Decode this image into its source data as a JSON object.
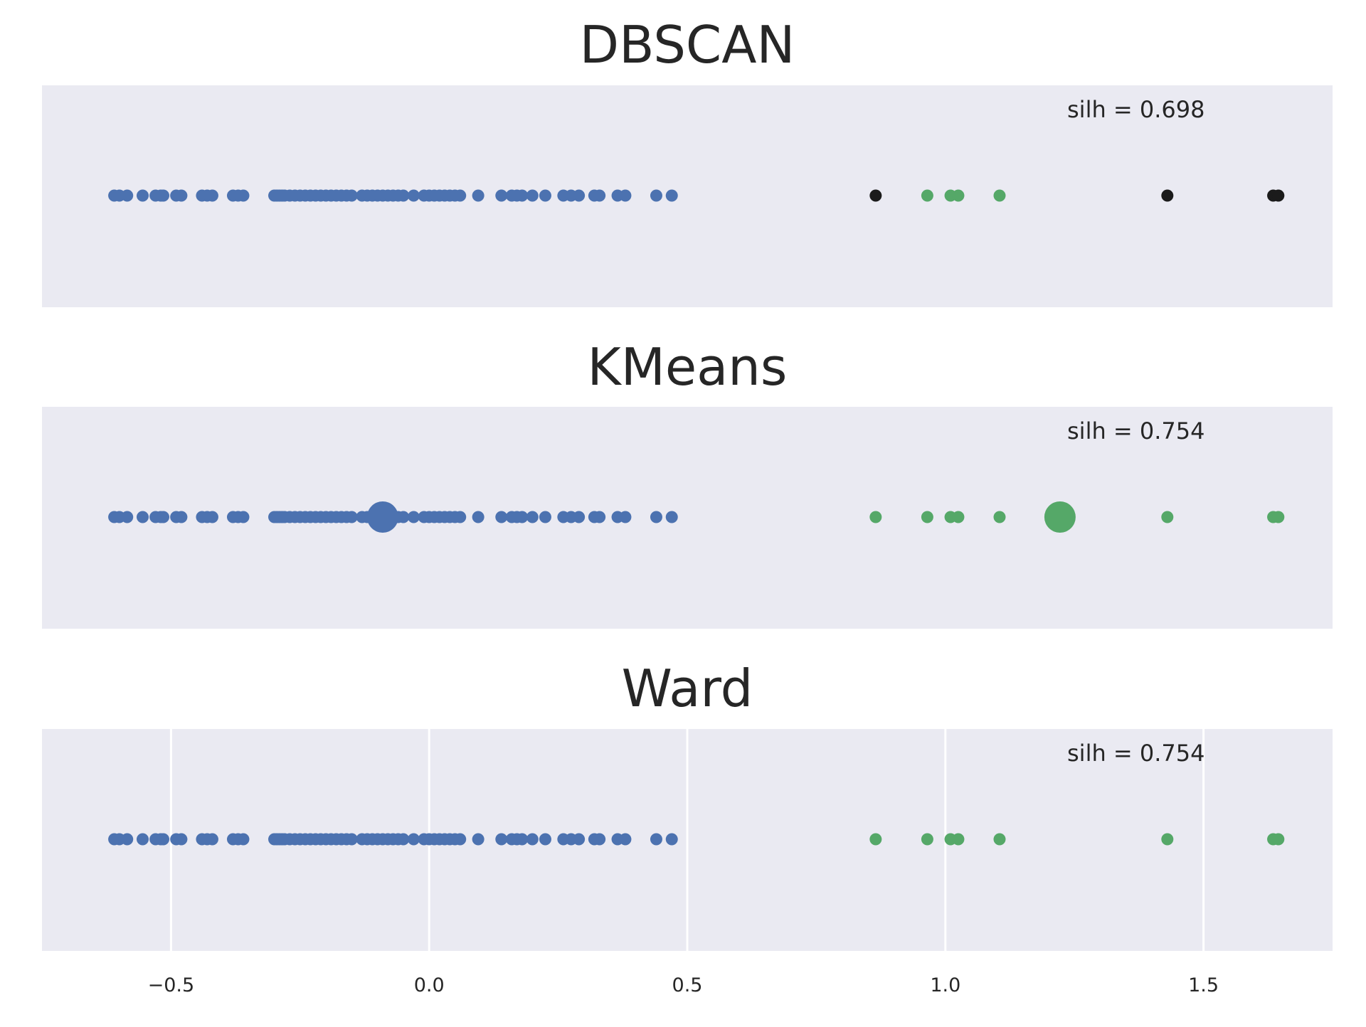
{
  "chart_data": [
    {
      "type": "scatter",
      "title": "DBSCAN",
      "annotation": "silh = 0.698",
      "xlim": [
        -0.75,
        1.75
      ],
      "grid": false,
      "series": [
        {
          "color": "#4c72b0",
          "x": [
            -0.61,
            -0.6,
            -0.585,
            -0.555,
            -0.53,
            -0.52,
            -0.515,
            -0.49,
            -0.48,
            -0.44,
            -0.43,
            -0.42,
            -0.38,
            -0.37,
            -0.36,
            -0.3,
            -0.295,
            -0.29,
            -0.285,
            -0.28,
            -0.27,
            -0.26,
            -0.25,
            -0.24,
            -0.23,
            -0.22,
            -0.21,
            -0.2,
            -0.19,
            -0.18,
            -0.17,
            -0.16,
            -0.15,
            -0.13,
            -0.12,
            -0.11,
            -0.1,
            -0.09,
            -0.08,
            -0.07,
            -0.06,
            -0.05,
            -0.03,
            -0.01,
            0.0,
            0.01,
            0.02,
            0.03,
            0.04,
            0.05,
            0.06,
            0.095,
            0.14,
            0.16,
            0.17,
            0.18,
            0.2,
            0.225,
            0.26,
            0.275,
            0.29,
            0.32,
            0.33,
            0.365,
            0.38,
            0.44,
            0.47
          ],
          "size": "small"
        },
        {
          "color": "#1b1b1b",
          "x": [
            0.865,
            1.43,
            1.635,
            1.645
          ],
          "size": "small"
        },
        {
          "color": "#55a868",
          "x": [
            0.965,
            1.01,
            1.025,
            1.105
          ],
          "size": "small"
        }
      ]
    },
    {
      "type": "scatter",
      "title": "KMeans",
      "annotation": "silh = 0.754",
      "xlim": [
        -0.75,
        1.75
      ],
      "grid": false,
      "series": [
        {
          "color": "#4c72b0",
          "x": [
            -0.61,
            -0.6,
            -0.585,
            -0.555,
            -0.53,
            -0.52,
            -0.515,
            -0.49,
            -0.48,
            -0.44,
            -0.43,
            -0.42,
            -0.38,
            -0.37,
            -0.36,
            -0.3,
            -0.295,
            -0.29,
            -0.285,
            -0.28,
            -0.27,
            -0.26,
            -0.25,
            -0.24,
            -0.23,
            -0.22,
            -0.21,
            -0.2,
            -0.19,
            -0.18,
            -0.17,
            -0.16,
            -0.15,
            -0.13,
            -0.12,
            -0.11,
            -0.1,
            -0.09,
            -0.08,
            -0.07,
            -0.06,
            -0.05,
            -0.03,
            -0.01,
            0.0,
            0.01,
            0.02,
            0.03,
            0.04,
            0.05,
            0.06,
            0.095,
            0.14,
            0.16,
            0.17,
            0.18,
            0.2,
            0.225,
            0.26,
            0.275,
            0.29,
            0.32,
            0.33,
            0.365,
            0.38,
            0.44,
            0.47
          ],
          "size": "small"
        },
        {
          "color": "#55a868",
          "x": [
            0.865,
            0.965,
            1.01,
            1.025,
            1.105,
            1.43,
            1.635,
            1.645
          ],
          "size": "small"
        },
        {
          "color": "#4c72b0",
          "x": [
            -0.09
          ],
          "size": "large",
          "role": "centroid"
        },
        {
          "color": "#55a868",
          "x": [
            1.222
          ],
          "size": "large",
          "role": "centroid"
        }
      ]
    },
    {
      "type": "scatter",
      "title": "Ward",
      "annotation": "silh = 0.754",
      "xlim": [
        -0.75,
        1.75
      ],
      "grid": true,
      "xticks": [
        -0.5,
        0.0,
        0.5,
        1.0,
        1.5
      ],
      "xtick_labels": [
        "−0.5",
        "0.0",
        "0.5",
        "1.0",
        "1.5"
      ],
      "series": [
        {
          "color": "#4c72b0",
          "x": [
            -0.61,
            -0.6,
            -0.585,
            -0.555,
            -0.53,
            -0.52,
            -0.515,
            -0.49,
            -0.48,
            -0.44,
            -0.43,
            -0.42,
            -0.38,
            -0.37,
            -0.36,
            -0.3,
            -0.295,
            -0.29,
            -0.285,
            -0.28,
            -0.27,
            -0.26,
            -0.25,
            -0.24,
            -0.23,
            -0.22,
            -0.21,
            -0.2,
            -0.19,
            -0.18,
            -0.17,
            -0.16,
            -0.15,
            -0.13,
            -0.12,
            -0.11,
            -0.1,
            -0.09,
            -0.08,
            -0.07,
            -0.06,
            -0.05,
            -0.03,
            -0.01,
            0.0,
            0.01,
            0.02,
            0.03,
            0.04,
            0.05,
            0.06,
            0.095,
            0.14,
            0.16,
            0.17,
            0.18,
            0.2,
            0.225,
            0.26,
            0.275,
            0.29,
            0.32,
            0.33,
            0.365,
            0.38,
            0.44,
            0.47
          ],
          "size": "small"
        },
        {
          "color": "#55a868",
          "x": [
            0.865,
            0.965,
            1.01,
            1.025,
            1.105,
            1.43,
            1.635,
            1.645
          ],
          "size": "small"
        }
      ]
    }
  ]
}
